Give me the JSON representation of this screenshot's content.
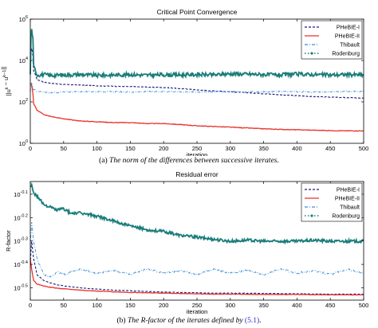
{
  "figure": {
    "caption_a": {
      "tag": "(a)",
      "text": "The norm of the differences between successive iterates."
    },
    "caption_b": {
      "tag": "(b)",
      "text": "The R-factor of the iterates defined by",
      "ref": "(5.1)",
      "end": "."
    }
  },
  "colors": {
    "phebie1": "#1a1a7a",
    "phebie2": "#e8332a",
    "thibault": "#3b8fd9",
    "rodenburg": "#1a7d7a"
  },
  "chart_data": [
    {
      "type": "line",
      "title": "Critical Point Convergence",
      "xlabel": "iteration",
      "ylabel": "||u^k − u^{k−1}||",
      "xlim": [
        0,
        500
      ],
      "ylim": [
        1,
        1000000
      ],
      "yscale": "log",
      "grid": false,
      "legend_position": "top-right",
      "xticks": [
        "0",
        "50",
        "100",
        "150",
        "200",
        "250",
        "300",
        "350",
        "400",
        "450",
        "500"
      ],
      "yticks": [
        "10^0",
        "10^2",
        "10^4",
        "10^6"
      ],
      "series": [
        {
          "name": "PHeBIE-I",
          "style": "dashed",
          "color": "phebie1",
          "x": [
            0,
            2,
            5,
            10,
            20,
            30,
            50,
            75,
            100,
            125,
            150,
            175,
            200,
            225,
            250,
            275,
            300,
            325,
            350,
            375,
            400,
            425,
            450,
            475,
            500
          ],
          "y": [
            2000,
            40000,
            3000,
            1200,
            900,
            800,
            700,
            650,
            600,
            570,
            550,
            520,
            500,
            440,
            380,
            340,
            310,
            280,
            250,
            220,
            200,
            180,
            170,
            160,
            150
          ]
        },
        {
          "name": "PHeBIE-II",
          "style": "solid",
          "color": "phebie2",
          "x": [
            0,
            2,
            5,
            10,
            20,
            30,
            50,
            75,
            100,
            125,
            150,
            175,
            200,
            225,
            250,
            275,
            300,
            325,
            350,
            375,
            400,
            425,
            450,
            475,
            500
          ],
          "y": [
            800,
            600,
            80,
            40,
            25,
            20,
            15,
            12,
            11,
            10,
            10,
            9,
            9,
            8,
            7,
            6.5,
            6,
            5.5,
            5,
            4.7,
            4.5,
            4.3,
            4.1,
            4,
            4
          ]
        },
        {
          "name": "Thibault",
          "style": "dash-dot",
          "color": "thibault",
          "x": [
            0,
            2,
            5,
            10,
            20,
            30,
            50,
            75,
            100,
            125,
            150,
            175,
            200,
            225,
            250,
            275,
            300,
            325,
            350,
            375,
            400,
            425,
            450,
            475,
            500
          ],
          "y": [
            300,
            800,
            400,
            320,
            300,
            280,
            300,
            310,
            320,
            310,
            300,
            310,
            320,
            310,
            300,
            310,
            320,
            300,
            310,
            320,
            310,
            300,
            310,
            320,
            320
          ]
        },
        {
          "name": "Rodenburg",
          "style": "dotted-marker",
          "color": "rodenburg",
          "x": [
            0,
            2,
            5,
            10,
            20,
            30,
            50,
            75,
            100,
            125,
            150,
            175,
            200,
            225,
            250,
            275,
            300,
            325,
            350,
            375,
            400,
            425,
            450,
            475,
            500
          ],
          "y": [
            2000,
            300000,
            5000,
            2000,
            2100,
            1900,
            2000,
            2100,
            1900,
            2000,
            2100,
            1950,
            2050,
            2000,
            2100,
            2000,
            2300,
            2200,
            2100,
            2000,
            2200,
            2100,
            2000,
            2100,
            2000
          ]
        }
      ]
    },
    {
      "type": "line",
      "title": "Residual error",
      "xlabel": "iteration",
      "ylabel": "R-factor",
      "xlim": [
        0,
        500
      ],
      "ylim": [
        0.28,
        0.9
      ],
      "yscale": "log",
      "grid": false,
      "legend_position": "top-right",
      "xticks": [
        "0",
        "50",
        "100",
        "150",
        "200",
        "250",
        "300",
        "350",
        "400",
        "450",
        "500"
      ],
      "yticks": [
        "10^-0.1",
        "10^-0.2",
        "10^-0.3",
        "10^-0.4",
        "10^-0.5"
      ],
      "series": [
        {
          "name": "PHeBIE-I",
          "style": "dashed",
          "color": "phebie1",
          "x": [
            0,
            2,
            5,
            10,
            20,
            30,
            40,
            50,
            75,
            100,
            125,
            150,
            175,
            200,
            225,
            250,
            275,
            300,
            350,
            400,
            450,
            500
          ],
          "y": [
            0.4,
            0.5,
            0.42,
            0.36,
            0.34,
            0.332,
            0.326,
            0.322,
            0.316,
            0.312,
            0.309,
            0.307,
            0.305,
            0.303,
            0.302,
            0.301,
            0.3,
            0.3,
            0.299,
            0.298,
            0.297,
            0.297
          ]
        },
        {
          "name": "PHeBIE-II",
          "style": "solid",
          "color": "phebie2",
          "x": [
            0,
            2,
            5,
            10,
            20,
            30,
            40,
            50,
            75,
            100,
            125,
            150,
            175,
            200,
            225,
            250,
            275,
            300,
            350,
            400,
            450,
            500
          ],
          "y": [
            0.42,
            0.38,
            0.34,
            0.328,
            0.322,
            0.318,
            0.315,
            0.313,
            0.309,
            0.306,
            0.304,
            0.302,
            0.301,
            0.3,
            0.299,
            0.298,
            0.297,
            0.297,
            0.296,
            0.296,
            0.295,
            0.295
          ]
        },
        {
          "name": "Thibault",
          "style": "dash-dot",
          "color": "thibault",
          "x": [
            0,
            2,
            5,
            10,
            20,
            30,
            40,
            50,
            75,
            100,
            125,
            150,
            175,
            200,
            225,
            250,
            275,
            300,
            325,
            350,
            375,
            400,
            425,
            450,
            475,
            500
          ],
          "y": [
            0.48,
            0.6,
            0.5,
            0.42,
            0.36,
            0.35,
            0.37,
            0.36,
            0.38,
            0.365,
            0.375,
            0.36,
            0.38,
            0.365,
            0.375,
            0.36,
            0.38,
            0.365,
            0.375,
            0.36,
            0.38,
            0.365,
            0.375,
            0.36,
            0.38,
            0.365
          ]
        },
        {
          "name": "Rodenburg",
          "style": "dotted-marker",
          "color": "rodenburg",
          "x": [
            0,
            2,
            5,
            10,
            20,
            30,
            40,
            50,
            60,
            75,
            100,
            125,
            150,
            175,
            200,
            225,
            250,
            275,
            300,
            325,
            350,
            375,
            400,
            425,
            450,
            475,
            500
          ],
          "y": [
            0.85,
            0.88,
            0.8,
            0.78,
            0.72,
            0.7,
            0.68,
            0.69,
            0.66,
            0.66,
            0.64,
            0.61,
            0.58,
            0.56,
            0.55,
            0.53,
            0.52,
            0.51,
            0.5,
            0.505,
            0.5,
            0.5,
            0.5,
            0.505,
            0.5,
            0.5,
            0.5
          ]
        }
      ]
    }
  ]
}
